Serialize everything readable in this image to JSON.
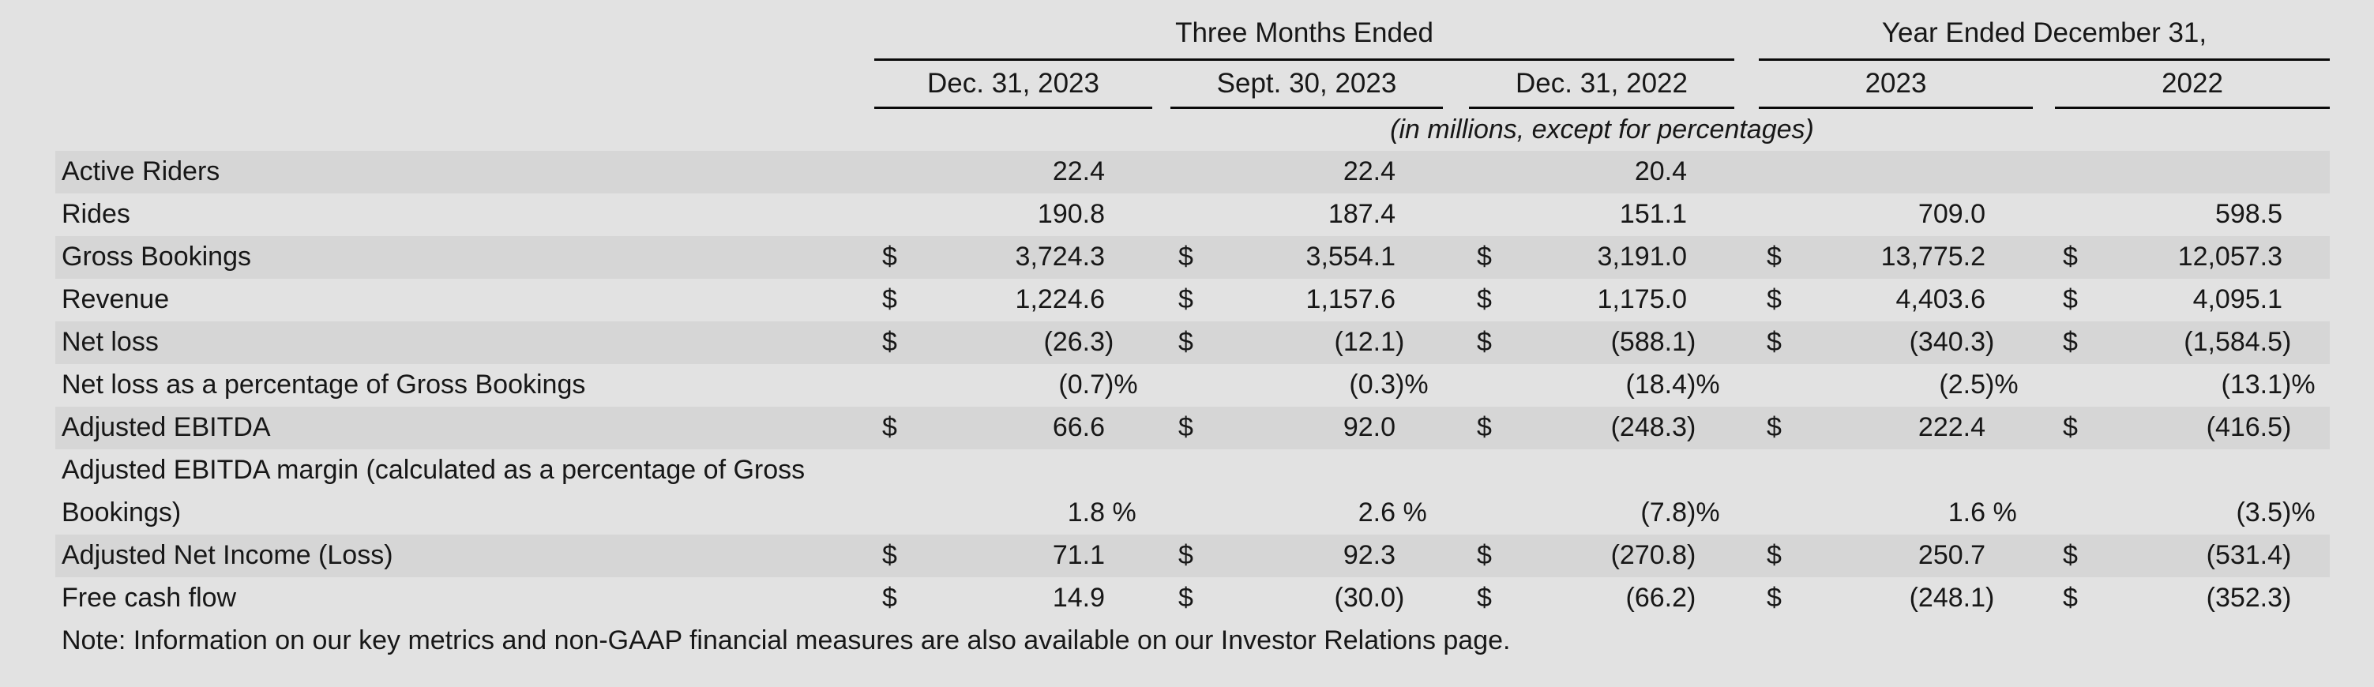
{
  "table": {
    "currency_symbol": "$",
    "group_headers": [
      "Three Months Ended",
      "Year Ended December 31,"
    ],
    "column_headers": [
      "Dec. 31, 2023",
      "Sept. 30, 2023",
      "Dec. 31, 2022",
      "2023",
      "2022"
    ],
    "units_note": "(in millions, except for percentages)",
    "rows": [
      {
        "label": "Active Riders",
        "dollar": false,
        "striped": true,
        "values": [
          "22.4",
          "22.4",
          "20.4",
          "",
          ""
        ]
      },
      {
        "label": "Rides",
        "dollar": false,
        "striped": false,
        "values": [
          "190.8",
          "187.4",
          "151.1",
          "709.0",
          "598.5"
        ]
      },
      {
        "label": "Gross Bookings",
        "dollar": true,
        "striped": true,
        "values": [
          "3,724.3",
          "3,554.1",
          "3,191.0",
          "13,775.2",
          "12,057.3"
        ]
      },
      {
        "label": "Revenue",
        "dollar": true,
        "striped": false,
        "values": [
          "1,224.6",
          "1,157.6",
          "1,175.0",
          "4,403.6",
          "4,095.1"
        ]
      },
      {
        "label": "Net loss",
        "dollar": true,
        "striped": true,
        "values": [
          "(26.3)",
          "(12.1)",
          "(588.1)",
          "(340.3)",
          "(1,584.5)"
        ]
      },
      {
        "label": "Net loss as a percentage of Gross Bookings",
        "dollar": false,
        "striped": false,
        "values": [
          "(0.7)%",
          "(0.3)%",
          "(18.4)%",
          "(2.5)%",
          "(13.1)%"
        ]
      },
      {
        "label": "Adjusted EBITDA",
        "dollar": true,
        "striped": true,
        "values": [
          "66.6",
          "92.0",
          "(248.3)",
          "222.4",
          "(416.5)"
        ]
      },
      {
        "label": "Adjusted EBITDA margin (calculated as a percentage of Gross",
        "label2": "Bookings)",
        "dollar": false,
        "striped": false,
        "values": [
          "1.8 %",
          "2.6 %",
          "(7.8)%",
          "1.6 %",
          "(3.5)%"
        ]
      },
      {
        "label": "Adjusted Net Income (Loss)",
        "dollar": true,
        "striped": true,
        "values": [
          "71.1",
          "92.3",
          "(270.8)",
          "250.7",
          "(531.4)"
        ]
      },
      {
        "label": "Free cash flow",
        "dollar": true,
        "striped": false,
        "values": [
          "14.9",
          "(30.0)",
          "(66.2)",
          "(248.1)",
          "(352.3)"
        ]
      }
    ],
    "footnote": "Note: Information on our key metrics and non-GAAP financial measures are also available on our Investor Relations page."
  },
  "colors": {
    "background": "#e2e2e2",
    "stripe": "#d6d6d6",
    "text": "#171717",
    "rule": "#0a0a0a"
  }
}
